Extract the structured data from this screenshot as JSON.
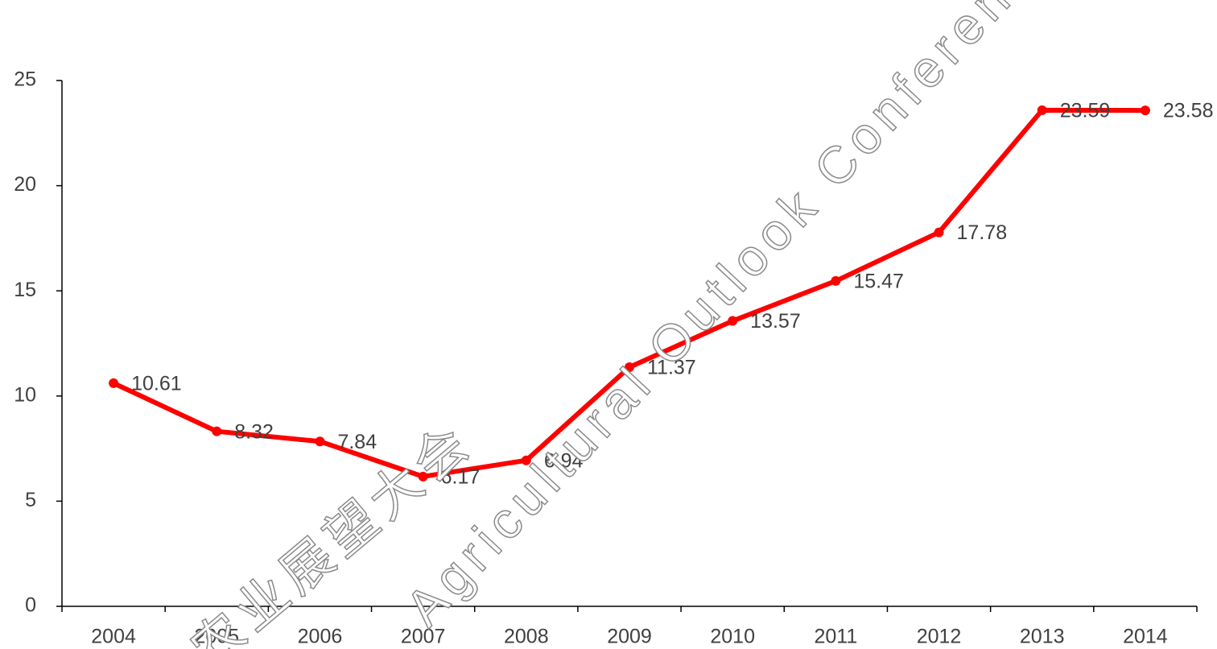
{
  "chart_data": {
    "type": "line",
    "categories": [
      "2004",
      "2005",
      "2006",
      "2007",
      "2008",
      "2009",
      "2010",
      "2011",
      "2012",
      "2013",
      "2014"
    ],
    "series": [
      {
        "color": "#ff0000",
        "values": [
          10.61,
          8.32,
          7.84,
          6.17,
          6.94,
          11.37,
          13.57,
          15.47,
          17.78,
          23.59,
          23.58
        ]
      }
    ],
    "ylim": [
      0,
      25
    ],
    "yticks": [
      0,
      5,
      10,
      15,
      20,
      25
    ],
    "grid": false,
    "watermarks": [
      "Agricultural Outlook Conference",
      "农业展望大会"
    ]
  }
}
